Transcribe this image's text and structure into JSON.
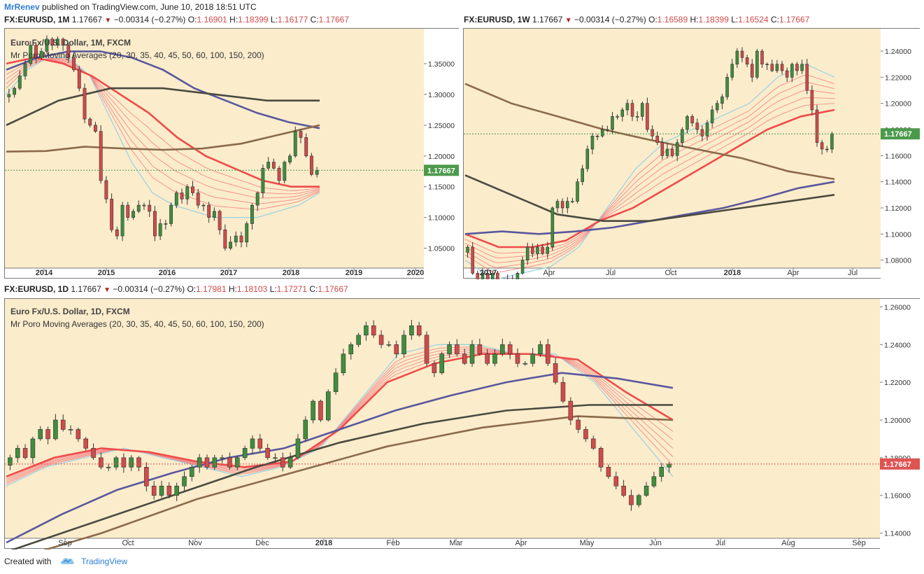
{
  "header": {
    "author": "MrRenev",
    "published": "published on TradingView.com, June 10, 2018 18:51 UTC"
  },
  "footer": {
    "created_with": "Created with",
    "brand": "TradingView"
  },
  "colors": {
    "chart_bg": "#fbeccb",
    "up": "#3e8e3e",
    "down": "#d24a4a",
    "ma_red": "#ef4b4b",
    "ma_light": "#f48a8a",
    "ma_blue": "#58579e",
    "ma_brown": "#8a6a4a",
    "ma_dark": "#4a4a40",
    "ma_cyan": "#9fd2e0",
    "last_price_green": "#4b9a4b",
    "last_price_red": "#e05353"
  },
  "panels": [
    {
      "id": "monthly",
      "ohlc": {
        "symbol": "FX:EURUSD, 1M",
        "last": "1.17667",
        "change": "−0.00314 (−0.27%)",
        "o_label": "O:",
        "o": "1.16901",
        "h_label": "H:",
        "h": "1.18399",
        "l_label": "L:",
        "l": "1.16177",
        "c_label": "C:",
        "c": "1.17667"
      },
      "title": "Euro Fx/U.S. Dollar, 1M, FXCM",
      "study": "Mr Poro Moving Averages (20, 30, 35, 40, 45, 50, 60, 100, 150, 200)",
      "last_price_label": "1.17667"
    },
    {
      "id": "weekly",
      "ohlc": {
        "symbol": "FX:EURUSD, 1W",
        "last": "1.17667",
        "change": "−0.00314 (−0.27%)",
        "o_label": "O:",
        "o": "1.16589",
        "h_label": "H:",
        "h": "1.18399",
        "l_label": "L:",
        "l": "1.16524",
        "c_label": "C:",
        "c": "1.17667"
      },
      "title": "",
      "study": "",
      "last_price_label": "1.17667"
    },
    {
      "id": "daily",
      "ohlc": {
        "symbol": "FX:EURUSD, 1D",
        "last": "1.17667",
        "change": "−0.00314 (−0.27%)",
        "o_label": "O:",
        "o": "1.17981",
        "h_label": "H:",
        "h": "1.18103",
        "l_label": "L:",
        "l": "1.17271",
        "c_label": "C:",
        "c": "1.17667"
      },
      "title": "Euro Fx/U.S. Dollar, 1D, FXCM",
      "study": "Mr Poro Moving Averages (20, 30, 35, 40, 45, 50, 60, 100, 150, 200)",
      "last_price_label": "1.17667"
    }
  ],
  "chart_data": [
    {
      "type": "candlestick",
      "title": "Euro Fx/U.S. Dollar, 1M, FXCM",
      "interval": "1M",
      "ylim": [
        1.02,
        1.4
      ],
      "yticks": [
        "1.35000",
        "1.30000",
        "1.25000",
        "1.20000",
        "1.15000",
        "1.10000",
        "1.05000"
      ],
      "xtick_labels": [
        "2014",
        "2015",
        "2016",
        "2017",
        "2018",
        "2019",
        "2020"
      ],
      "x_range": [
        2013.4,
        2020.0
      ],
      "grid": false,
      "last_price": 1.17667,
      "close_series": {
        "start": 2013.5,
        "step": 0.0833,
        "values": [
          1.3,
          1.31,
          1.33,
          1.35,
          1.38,
          1.36,
          1.37,
          1.39,
          1.38,
          1.39,
          1.38,
          1.36,
          1.34,
          1.31,
          1.26,
          1.25,
          1.24,
          1.16,
          1.13,
          1.08,
          1.07,
          1.12,
          1.1,
          1.11,
          1.12,
          1.12,
          1.11,
          1.07,
          1.09,
          1.09,
          1.12,
          1.14,
          1.13,
          1.15,
          1.14,
          1.12,
          1.12,
          1.1,
          1.11,
          1.08,
          1.05,
          1.06,
          1.07,
          1.06,
          1.09,
          1.12,
          1.14,
          1.18,
          1.19,
          1.18,
          1.16,
          1.19,
          1.2,
          1.24,
          1.23,
          1.2,
          1.17,
          1.17667
        ]
      },
      "moving_averages": [
        {
          "name": "20",
          "color": "#9fd2e0",
          "values": [
            1.3,
            1.34,
            1.36,
            1.36,
            1.33,
            1.26,
            1.19,
            1.14,
            1.12,
            1.11,
            1.1,
            1.1,
            1.1,
            1.11,
            1.12,
            1.14
          ]
        },
        {
          "name": "50",
          "color": "#ef4b4b",
          "values": [
            1.35,
            1.36,
            1.35,
            1.33,
            1.3,
            1.27,
            1.23,
            1.2,
            1.18,
            1.16,
            1.15,
            1.15
          ]
        },
        {
          "name": "100",
          "color": "#58579e",
          "values": [
            1.34,
            1.36,
            1.37,
            1.37,
            1.36,
            1.34,
            1.31,
            1.29,
            1.27,
            1.255,
            1.245
          ]
        },
        {
          "name": "150",
          "color": "#4a4a40",
          "values": [
            1.25,
            1.29,
            1.31,
            1.31,
            1.3,
            1.29,
            1.29
          ]
        },
        {
          "name": "200",
          "color": "#8a6a4a",
          "values": [
            1.207,
            1.208,
            1.215,
            1.212,
            1.21,
            1.212,
            1.22,
            1.235,
            1.25
          ]
        }
      ]
    },
    {
      "type": "candlestick",
      "title": "",
      "interval": "1W",
      "ylim": [
        1.075,
        1.255
      ],
      "yticks": [
        "1.24000",
        "1.22000",
        "1.20000",
        "1.18000",
        "1.16000",
        "1.14000",
        "1.12000",
        "1.10000",
        "1.08000"
      ],
      "xtick_labels": [
        "2017",
        "Apr",
        "Jul",
        "Oct",
        "2018",
        "Apr",
        "Jul"
      ],
      "grid": false,
      "last_price": 1.17667,
      "close_series": {
        "values": [
          1.09,
          1.07,
          1.06,
          1.07,
          1.065,
          1.07,
          1.06,
          1.06,
          1.065,
          1.065,
          1.07,
          1.08,
          1.09,
          1.085,
          1.09,
          1.085,
          1.09,
          1.12,
          1.125,
          1.12,
          1.125,
          1.125,
          1.14,
          1.15,
          1.165,
          1.175,
          1.175,
          1.18,
          1.18,
          1.19,
          1.19,
          1.195,
          1.2,
          1.19,
          1.19,
          1.2,
          1.18,
          1.175,
          1.17,
          1.16,
          1.165,
          1.16,
          1.17,
          1.18,
          1.19,
          1.185,
          1.18,
          1.175,
          1.185,
          1.195,
          1.2,
          1.205,
          1.22,
          1.23,
          1.24,
          1.235,
          1.23,
          1.22,
          1.24,
          1.23,
          1.23,
          1.225,
          1.23,
          1.225,
          1.22,
          1.23,
          1.225,
          1.23,
          1.21,
          1.195,
          1.17,
          1.165,
          1.165,
          1.17667
        ]
      },
      "moving_averages": [
        {
          "name": "20",
          "color": "#9fd2e0",
          "values": [
            1.08,
            1.065,
            1.07,
            1.075,
            1.09,
            1.12,
            1.15,
            1.17,
            1.18,
            1.19,
            1.2,
            1.22,
            1.23,
            1.22
          ]
        },
        {
          "name": "50",
          "color": "#ef4b4b",
          "values": [
            1.1,
            1.09,
            1.09,
            1.095,
            1.11,
            1.12,
            1.135,
            1.15,
            1.165,
            1.18,
            1.19,
            1.195
          ]
        },
        {
          "name": "100",
          "color": "#58579e",
          "values": [
            1.1,
            1.102,
            1.1,
            1.102,
            1.105,
            1.11,
            1.115,
            1.12,
            1.127,
            1.135,
            1.14
          ]
        },
        {
          "name": "150",
          "color": "#4a4a40",
          "values": [
            1.145,
            1.13,
            1.115,
            1.11,
            1.11,
            1.115,
            1.12,
            1.125,
            1.13
          ]
        },
        {
          "name": "200",
          "color": "#8a6a4a",
          "values": [
            1.215,
            1.2,
            1.19,
            1.18,
            1.172,
            1.165,
            1.158,
            1.148,
            1.142
          ]
        }
      ]
    },
    {
      "type": "candlestick",
      "title": "Euro Fx/U.S. Dollar, 1D, FXCM",
      "interval": "1D",
      "ylim": [
        1.138,
        1.262
      ],
      "yticks": [
        "1.26000",
        "1.24000",
        "1.22000",
        "1.20000",
        "1.18000",
        "1.16000",
        "1.14000"
      ],
      "xtick_labels": [
        "Sep",
        "Oct",
        "Nov",
        "Dec",
        "2018",
        "Feb",
        "Mar",
        "Apr",
        "May",
        "Jun",
        "Jul",
        "Aug",
        "Sep"
      ],
      "grid": false,
      "last_price": 1.17667,
      "close_series": {
        "values": [
          1.18,
          1.185,
          1.18,
          1.19,
          1.195,
          1.19,
          1.2,
          1.195,
          1.195,
          1.19,
          1.185,
          1.18,
          1.175,
          1.175,
          1.18,
          1.175,
          1.18,
          1.175,
          1.165,
          1.16,
          1.165,
          1.16,
          1.165,
          1.17,
          1.175,
          1.18,
          1.175,
          1.18,
          1.18,
          1.175,
          1.18,
          1.185,
          1.19,
          1.185,
          1.18,
          1.18,
          1.175,
          1.18,
          1.19,
          1.2,
          1.21,
          1.2,
          1.215,
          1.225,
          1.235,
          1.24,
          1.245,
          1.25,
          1.245,
          1.24,
          1.24,
          1.235,
          1.245,
          1.25,
          1.245,
          1.23,
          1.225,
          1.235,
          1.24,
          1.235,
          1.23,
          1.24,
          1.235,
          1.23,
          1.235,
          1.24,
          1.235,
          1.23,
          1.23,
          1.235,
          1.24,
          1.23,
          1.22,
          1.21,
          1.2,
          1.195,
          1.19,
          1.185,
          1.175,
          1.17,
          1.165,
          1.16,
          1.155,
          1.16,
          1.165,
          1.17,
          1.175,
          1.17667
        ]
      },
      "moving_averages": [
        {
          "name": "20",
          "color": "#9fd2e0",
          "values": [
            1.165,
            1.175,
            1.18,
            1.185,
            1.18,
            1.175,
            1.17,
            1.175,
            1.185,
            1.21,
            1.235,
            1.24,
            1.24,
            1.235,
            1.235,
            1.22,
            1.195,
            1.17
          ]
        },
        {
          "name": "50",
          "color": "#ef4b4b",
          "values": [
            1.17,
            1.18,
            1.185,
            1.183,
            1.178,
            1.175,
            1.178,
            1.195,
            1.22,
            1.23,
            1.235,
            1.235,
            1.232,
            1.215,
            1.2
          ]
        },
        {
          "name": "100",
          "color": "#58579e",
          "values": [
            1.135,
            1.15,
            1.163,
            1.172,
            1.18,
            1.185,
            1.195,
            1.205,
            1.213,
            1.22,
            1.225,
            1.222,
            1.217
          ]
        },
        {
          "name": "150",
          "color": "#4a4a40",
          "values": [
            1.13,
            1.145,
            1.16,
            1.175,
            1.188,
            1.198,
            1.205,
            1.208,
            1.208
          ]
        },
        {
          "name": "200",
          "color": "#8a6a4a",
          "values": [
            1.125,
            1.14,
            1.158,
            1.172,
            1.186,
            1.196,
            1.202,
            1.2
          ]
        }
      ]
    }
  ]
}
